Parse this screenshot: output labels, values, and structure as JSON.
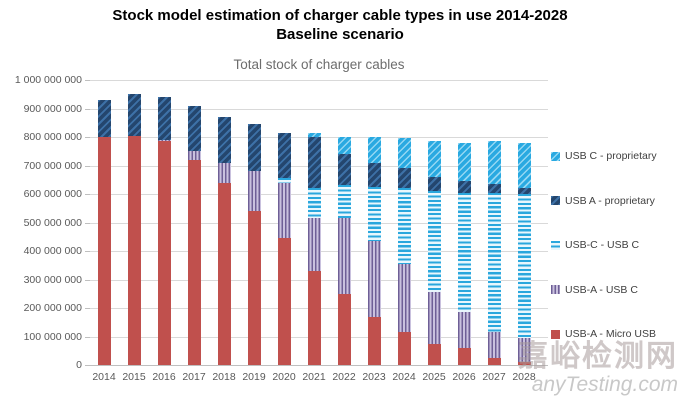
{
  "title": {
    "line1": "Stock model estimation of charger cable types in use 2014-2028",
    "line2": "Baseline scenario"
  },
  "watermark": {
    "line1": "嘉峪检测网",
    "line2": "anyTesting.com"
  },
  "colors": {
    "red": "#c0504d",
    "purple_stripe": "#6e5f96",
    "purple_light": "#c9c1de",
    "light_blue": "#29a9e1",
    "dark_blue": "#24466e",
    "gridline": "#d9d9d9",
    "axis_text": "#595959",
    "subtitle_text": "#6d6d6d"
  },
  "chart_data": {
    "type": "bar",
    "stacked": true,
    "title": "Total stock of charger cables",
    "xlabel": "",
    "ylabel": "",
    "ylim": [
      0,
      1000000000
    ],
    "grid": true,
    "legend_position": "right",
    "categories": [
      "2014",
      "2015",
      "2016",
      "2017",
      "2018",
      "2019",
      "2020",
      "2021",
      "2022",
      "2023",
      "2024",
      "2025",
      "2026",
      "2027",
      "2028"
    ],
    "ytick_labels": [
      "0",
      "100 000 000",
      "200 000 000",
      "300 000 000",
      "400 000 000",
      "500 000 000",
      "600 000 000",
      "700 000 000",
      "800 000 000",
      "900 000 000",
      "1 000 000 000"
    ],
    "series": [
      {
        "name": "USB-A - Micro USB",
        "swatch": "red-solid",
        "values": [
          800000000,
          805000000,
          785000000,
          720000000,
          640000000,
          540000000,
          445000000,
          330000000,
          250000000,
          170000000,
          115000000,
          75000000,
          60000000,
          25000000,
          10000000
        ]
      },
      {
        "name": "USB-A - USB C",
        "swatch": "purple-vertical-stripes",
        "values": [
          0,
          0,
          5000000,
          30000000,
          70000000,
          140000000,
          195000000,
          185000000,
          265000000,
          265000000,
          240000000,
          180000000,
          125000000,
          90000000,
          85000000
        ]
      },
      {
        "name": "USB-C - USB C",
        "swatch": "light-blue-horizontal-stripes",
        "values": [
          0,
          0,
          0,
          0,
          0,
          0,
          15000000,
          105000000,
          115000000,
          190000000,
          265000000,
          355000000,
          420000000,
          490000000,
          505000000
        ]
      },
      {
        "name": "USB A - proprietary",
        "swatch": "dark-blue-diagonal-hatch",
        "values": [
          130000000,
          145000000,
          150000000,
          160000000,
          160000000,
          165000000,
          160000000,
          180000000,
          110000000,
          85000000,
          70000000,
          50000000,
          40000000,
          30000000,
          20000000
        ]
      },
      {
        "name": "USB C - proprietary",
        "swatch": "light-blue-diagonal-hatch",
        "values": [
          0,
          0,
          0,
          0,
          0,
          0,
          0,
          15000000,
          60000000,
          90000000,
          105000000,
          125000000,
          135000000,
          150000000,
          160000000
        ]
      }
    ]
  },
  "legend": {
    "items": [
      {
        "label": "USB C - proprietary",
        "swatch": "light-blue-diagonal-hatch"
      },
      {
        "label": "USB A - proprietary",
        "swatch": "dark-blue-diagonal-hatch"
      },
      {
        "label": "USB-C - USB C",
        "swatch": "light-blue-horizontal-stripes"
      },
      {
        "label": "USB-A - USB C",
        "swatch": "purple-vertical-stripes"
      },
      {
        "label": "USB-A - Micro USB",
        "swatch": "red-solid"
      }
    ]
  }
}
